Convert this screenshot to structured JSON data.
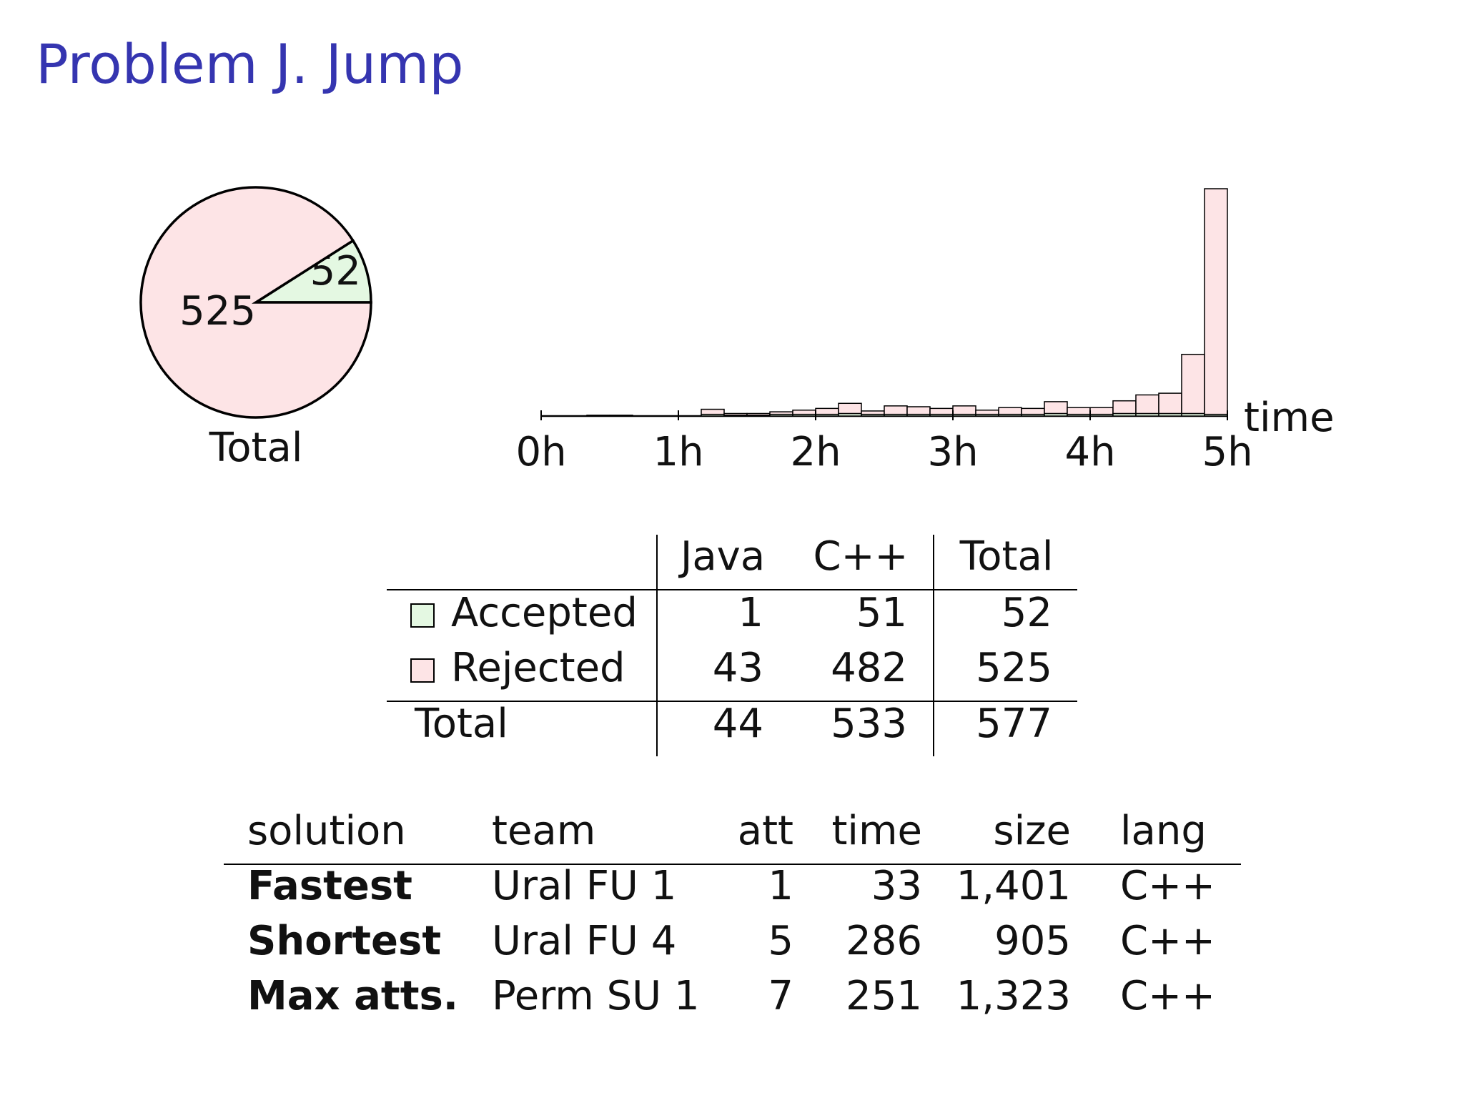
{
  "title": "Problem J. Jump",
  "chart_data": [
    {
      "type": "pie",
      "label": "Total",
      "categories": [
        "Accepted",
        "Rejected"
      ],
      "values": [
        52,
        525
      ],
      "colors": [
        "#e4f8e2",
        "#fde4e6"
      ]
    },
    {
      "type": "histogram",
      "xlabel": "time",
      "bins": [
        0,
        10,
        20,
        30,
        40,
        50,
        60,
        70,
        80,
        90,
        100,
        110,
        120,
        130,
        140,
        150,
        160,
        170,
        180,
        190,
        200,
        210,
        220,
        230,
        240,
        250,
        260,
        270,
        280,
        290,
        300
      ],
      "xlim": [
        0,
        300
      ],
      "xticks": [
        {
          "value": 0,
          "label": "0h"
        },
        {
          "value": 60,
          "label": "1h"
        },
        {
          "value": 120,
          "label": "2h"
        },
        {
          "value": 180,
          "label": "3h"
        },
        {
          "value": 240,
          "label": "4h"
        },
        {
          "value": 300,
          "label": "5h"
        }
      ],
      "stacked": true,
      "series": [
        {
          "name": "Accepted",
          "color": "#e4f8e2",
          "values": [
            0,
            0,
            1,
            1,
            0,
            0,
            0,
            2,
            1,
            1,
            2,
            2,
            2,
            3,
            2,
            2,
            2,
            2,
            2,
            2,
            2,
            2,
            3,
            2,
            2,
            3,
            3,
            3,
            3,
            2
          ]
        },
        {
          "name": "Rejected",
          "color": "#fde4e6",
          "values": [
            0,
            0,
            0,
            0,
            0,
            0,
            0,
            6,
            2,
            2,
            3,
            5,
            7,
            12,
            4,
            10,
            9,
            7,
            10,
            5,
            8,
            7,
            14,
            8,
            8,
            15,
            22,
            24,
            70,
            267
          ]
        }
      ]
    }
  ],
  "summary": {
    "header": [
      "Java",
      "C++",
      "Total"
    ],
    "rows": [
      [
        1,
        51,
        52
      ],
      [
        43,
        482,
        525
      ]
    ],
    "total_label": "Total",
    "totals": [
      44,
      533,
      577
    ]
  },
  "solutions": {
    "columns": [
      "solution",
      "team",
      "att",
      "time",
      "size",
      "lang"
    ],
    "rows": [
      [
        "Fastest",
        "Ural FU 1",
        1,
        33,
        "1,401",
        "C++"
      ],
      [
        "Shortest",
        "Ural FU 4",
        5,
        286,
        "905",
        "C++"
      ],
      [
        "Max atts.",
        "Perm SU 1",
        7,
        251,
        "1,323",
        "C++"
      ]
    ]
  }
}
